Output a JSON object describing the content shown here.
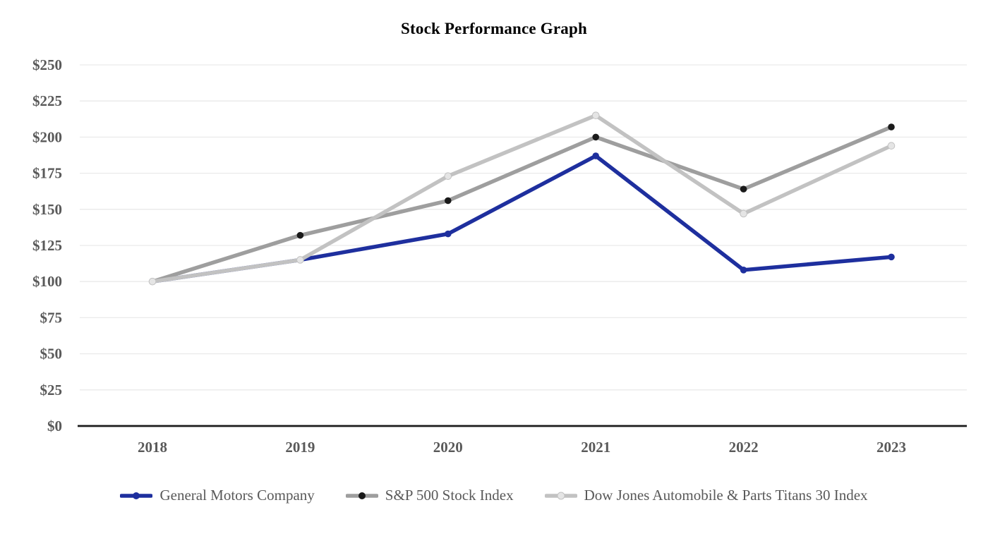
{
  "chart_data": {
    "type": "line",
    "title": "Stock Performance Graph",
    "categories": [
      "2018",
      "2019",
      "2020",
      "2021",
      "2022",
      "2023"
    ],
    "series": [
      {
        "name": "General Motors Company",
        "values": [
          100,
          115,
          133,
          187,
          108,
          117
        ],
        "line_color": "#1E2F9E",
        "marker_color": "#1E2F9E",
        "marker_stroke": "none"
      },
      {
        "name": "S&P 500 Stock Index",
        "values": [
          100,
          132,
          156,
          200,
          164,
          207
        ],
        "line_color": "#9E9E9E",
        "marker_color": "#1A1A1A",
        "marker_stroke": "none"
      },
      {
        "name": "Dow Jones Automobile & Parts Titans 30 Index",
        "values": [
          100,
          115,
          173,
          215,
          147,
          194
        ],
        "line_color": "#C2C2C2",
        "marker_color": "#E5E5E5",
        "marker_stroke": "#C2C2C2"
      }
    ],
    "ylim": [
      0,
      250
    ],
    "ytick_step": 25,
    "ytick_labels": [
      "$0",
      "$25",
      "$50",
      "$75",
      "$100",
      "$125",
      "$150",
      "$175",
      "$200",
      "$225",
      "$250"
    ],
    "xlabel": "",
    "ylabel": "",
    "grid": "horizontal",
    "legend_position": "bottom-center",
    "colors": {
      "background": "#FFFFFF",
      "gridline": "#EAEAEA",
      "axis_line": "#1A1A1A",
      "tick_label": "#595959",
      "legend_text": "#595959",
      "title_text": "#000000"
    }
  }
}
